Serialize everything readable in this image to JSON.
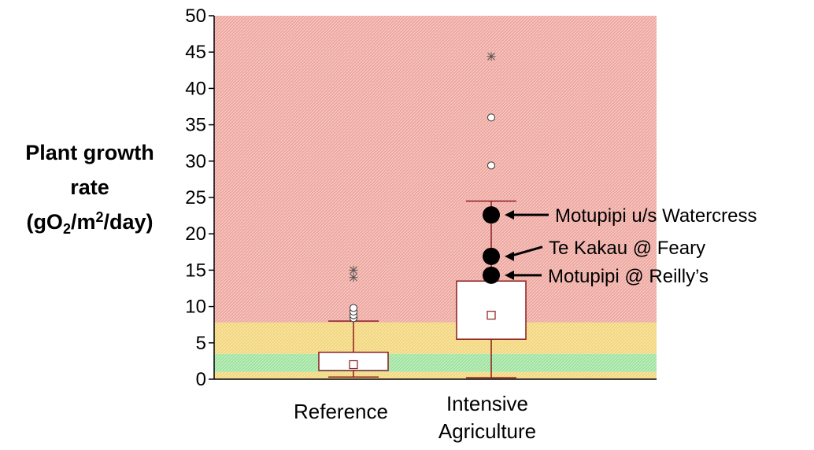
{
  "chart_data": {
    "type": "box",
    "ylabel": {
      "line1": "Plant growth",
      "line2": "rate",
      "paren_open": "(gO",
      "o2_sub": "2",
      "unit_mid": "/m",
      "m2_sup": "2",
      "unit_end": "/day)"
    },
    "ylim": [
      0,
      50
    ],
    "yticks": [
      "0",
      "5",
      "10",
      "15",
      "20",
      "25",
      "30",
      "35",
      "40",
      "45",
      "50"
    ],
    "categories": [
      "Reference",
      "Intensive Agriculture"
    ],
    "category_labels": [
      [
        "Reference"
      ],
      [
        "Intensive",
        "Agriculture"
      ]
    ],
    "bands": [
      {
        "from": 0,
        "to": 1,
        "color": "#f2d67a"
      },
      {
        "from": 1,
        "to": 3.5,
        "color": "#9fe39f"
      },
      {
        "from": 3.5,
        "to": 7.8,
        "color": "#f2d67a"
      },
      {
        "from": 7.8,
        "to": 50,
        "color": "#eea8a0"
      }
    ],
    "boxes": [
      {
        "category": "Reference",
        "whisker_low": 0.3,
        "q1": 1.2,
        "q3": 3.7,
        "whisker_high": 8.0,
        "mean": 2.0,
        "outliers": [
          8.4,
          8.8,
          9.3,
          9.8
        ],
        "extremes": [
          14.0,
          15.0
        ]
      },
      {
        "category": "Intensive Agriculture",
        "whisker_low": 0.2,
        "q1": 5.5,
        "q3": 13.5,
        "whisker_high": 24.5,
        "mean": 8.8,
        "outliers": [
          29.4,
          36.0
        ],
        "extremes": [
          44.4
        ]
      }
    ],
    "highlighted_points": [
      {
        "label": "Motupipi u/s Watercress",
        "category": "Intensive Agriculture",
        "value": 22.6
      },
      {
        "label": "Te Kakau @ Feary",
        "category": "Intensive Agriculture",
        "value": 16.9
      },
      {
        "label": "Motupipi @ Reilly’s",
        "category": "Intensive Agriculture",
        "value": 14.3
      }
    ],
    "colors": {
      "box_line": "#8b1c1c",
      "point_fill": "#000000"
    }
  }
}
